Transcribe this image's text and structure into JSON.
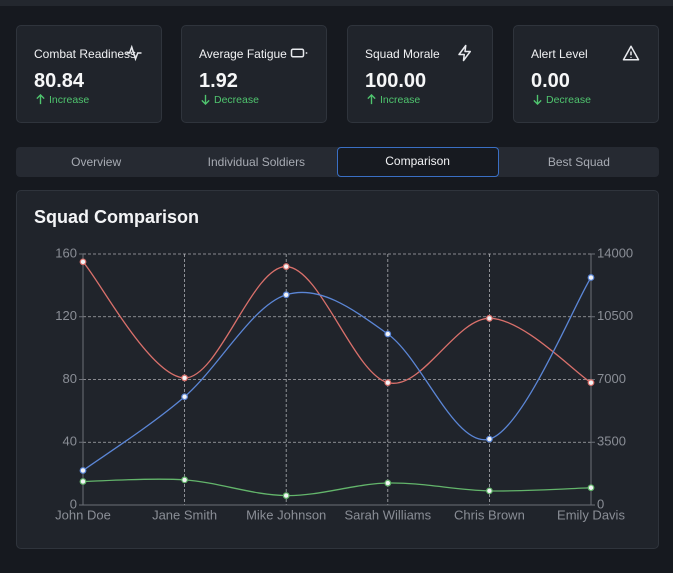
{
  "stats": [
    {
      "label": "Combat Readiness",
      "value": "80.84",
      "trend": "Increase"
    },
    {
      "label": "Average Fatigue",
      "value": "1.92",
      "trend": "Decrease"
    },
    {
      "label": "Squad Morale",
      "value": "100.00",
      "trend": "Increase"
    },
    {
      "label": "Alert Level",
      "value": "0.00",
      "trend": "Decrease"
    }
  ],
  "tabs": [
    "Overview",
    "Individual Soldiers",
    "Comparison",
    "Best Squad"
  ],
  "active_tab": 2,
  "chart_data": {
    "type": "line",
    "title": "Squad Comparison",
    "categories": [
      "John Doe",
      "Jane Smith",
      "Mike Johnson",
      "Sarah Williams",
      "Chris Brown",
      "Emily Davis"
    ],
    "series": [
      {
        "color": "#d9706b",
        "values": [
          155,
          81,
          152,
          78,
          119,
          78
        ]
      },
      {
        "color": "#5b86d6",
        "values": [
          22,
          69,
          134,
          109,
          42,
          145
        ]
      },
      {
        "color": "#63b56b",
        "values": [
          15,
          16,
          6,
          14,
          9,
          11
        ]
      }
    ],
    "ylim": [
      0,
      160
    ],
    "yticks": [
      0,
      40,
      80,
      120,
      160
    ],
    "y2lim": [
      0,
      14000
    ],
    "y2ticks": [
      0,
      3500,
      7000,
      10500,
      14000
    ],
    "grid": true
  }
}
